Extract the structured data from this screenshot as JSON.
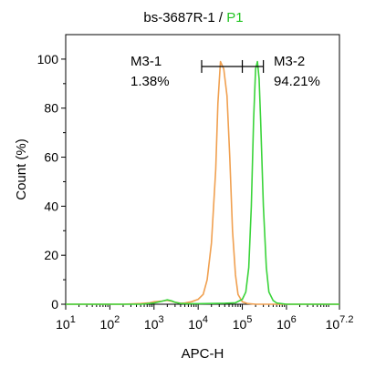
{
  "chart_data": {
    "type": "line",
    "title_prefix": "bs-3687R-1 / ",
    "title_gate": "P1",
    "title_gate_color": "#22c422",
    "xlabel": "APC-H",
    "ylabel": "Count  (%)",
    "x_scale": "log",
    "xlim": [
      10,
      15848932
    ],
    "ylim": [
      0,
      110
    ],
    "x_ticks": [
      {
        "base": "10",
        "exp": "1"
      },
      {
        "base": "10",
        "exp": "2"
      },
      {
        "base": "10",
        "exp": "3"
      },
      {
        "base": "10",
        "exp": "4"
      },
      {
        "base": "10",
        "exp": "5"
      },
      {
        "base": "10",
        "exp": "6"
      },
      {
        "base": "10",
        "exp": "7.2"
      }
    ],
    "y_ticks": [
      "0",
      "20",
      "40",
      "60",
      "80",
      "100"
    ],
    "grid": false,
    "series": [
      {
        "color": "#f0a050",
        "x": [
          10,
          200,
          500,
          800,
          1000,
          1500,
          2000,
          2500,
          3000,
          4000,
          5000,
          7000,
          10000,
          13000,
          16000,
          20000,
          25000,
          28000,
          32000,
          38000,
          45000,
          52000,
          60000,
          70000,
          80000,
          100000,
          130000,
          200000,
          400000,
          15848932
        ],
        "y": [
          0,
          0,
          0.3,
          0.6,
          1,
          1.3,
          1.6,
          1.2,
          0.8,
          0.4,
          0.5,
          1,
          2,
          4,
          10,
          25,
          55,
          82,
          99,
          96,
          85,
          60,
          30,
          12,
          4,
          1,
          0.3,
          0,
          0,
          0
        ]
      },
      {
        "color": "#3ad43a",
        "x": [
          10,
          500,
          1000,
          1500,
          2000,
          2500,
          3000,
          4000,
          6000,
          10000,
          20000,
          40000,
          70000,
          100000,
          120000,
          140000,
          160000,
          180000,
          200000,
          220000,
          240000,
          260000,
          300000,
          350000,
          400000,
          500000,
          600000,
          1000000,
          15848932
        ],
        "y": [
          0,
          0,
          0.5,
          1.2,
          1.8,
          1.4,
          0.8,
          0.3,
          0.2,
          0.2,
          0.3,
          0.4,
          0.6,
          2,
          5,
          15,
          40,
          75,
          96,
          99,
          92,
          75,
          40,
          15,
          5,
          1.5,
          0.5,
          0,
          0
        ]
      }
    ],
    "markers": [
      {
        "label": "M3-1",
        "value": "1.38%",
        "x_from": 10,
        "x_to": 11220
      },
      {
        "label": "M3-2",
        "value": "94.21%",
        "x_from": 11220,
        "x_to": 100000
      }
    ],
    "marker_bar_y": 97
  }
}
